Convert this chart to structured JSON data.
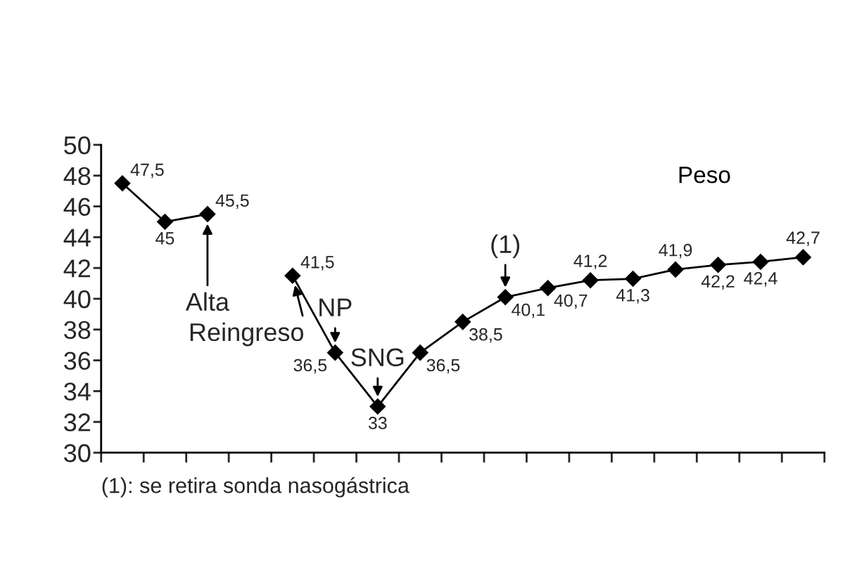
{
  "chart_data": {
    "type": "line",
    "categories": [
      null,
      null,
      null,
      null,
      null,
      null,
      null,
      null,
      null,
      null,
      null,
      null,
      null,
      null,
      null,
      null,
      null
    ],
    "series": [
      {
        "name": "Peso",
        "color": "#000000",
        "values": [
          47.5,
          45,
          45.5,
          null,
          null,
          null,
          null,
          null,
          null,
          null,
          null,
          null,
          null,
          null,
          null,
          null,
          null
        ],
        "value_labels": [
          "47,5",
          "45",
          "45,5",
          null,
          null,
          null,
          null,
          null,
          null,
          null,
          null,
          null,
          null,
          null,
          null,
          null,
          null
        ]
      },
      {
        "color": "#000000",
        "values": [
          null,
          null,
          null,
          null,
          41.5,
          36.5,
          33,
          36.5,
          38.5,
          40.1,
          40.7,
          41.2,
          41.3,
          41.9,
          42.2,
          42.4,
          42.7
        ],
        "value_labels": [
          null,
          null,
          null,
          null,
          "41,5",
          "36,5",
          "33",
          "36,5",
          "38,5",
          "40,1",
          "40,7",
          "41,2",
          "41,3",
          "41,9",
          "42,2",
          "42,4",
          "42,7"
        ]
      }
    ],
    "ylim": [
      30,
      50
    ],
    "yticks": [
      30,
      32,
      34,
      36,
      38,
      40,
      42,
      44,
      46,
      48,
      50
    ],
    "tick_labels": "y",
    "marker": "diamond",
    "line_style": "solid",
    "legend": "top right",
    "grid": false,
    "annotations": [
      {
        "text": "Alta",
        "y": 45.5
      },
      "Reingreso",
      {
        "text": "NP",
        "y": 36.5
      },
      {
        "text": "SNG",
        "y": 33
      },
      {
        "text": "(1)",
        "y": 40.1
      },
      "(1): se retira sonda nasogástrica"
    ]
  }
}
